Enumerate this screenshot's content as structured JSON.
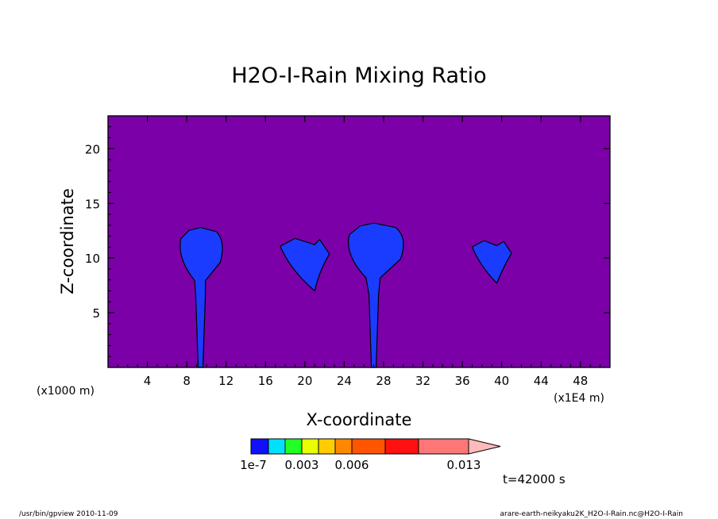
{
  "chart_data": {
    "type": "heatmap",
    "title": "H2O-I-Rain Mixing Ratio",
    "xlabel": "X-coordinate",
    "ylabel": "Z-coordinate",
    "x_unit_left": "(x1000 m)",
    "x_unit_right": "(x1E4 m)",
    "xlim": [
      0,
      51
    ],
    "ylim": [
      0,
      23
    ],
    "x_ticks": [
      4,
      8,
      12,
      16,
      20,
      24,
      28,
      32,
      36,
      40,
      44,
      48
    ],
    "y_ticks": [
      5,
      10,
      15,
      20
    ],
    "background_color": "#7b00a8",
    "features": [
      {
        "x": [
          7.0,
          9.4,
          12.0
        ],
        "z": [
          0,
          12.8
        ]
      },
      {
        "x": [
          17.5,
          21.0,
          22.5
        ],
        "z": [
          7.0,
          11.8
        ]
      },
      {
        "x": [
          24.0,
          27.0,
          30.5
        ],
        "z": [
          0,
          13.2
        ]
      },
      {
        "x": [
          37.0,
          39.5,
          41.0
        ],
        "z": [
          7.7,
          11.6
        ]
      }
    ],
    "colorbar": {
      "colors": [
        "#1010ff",
        "#00e0ff",
        "#22ff22",
        "#e8ff00",
        "#ffcc00",
        "#ff8800",
        "#ff5500",
        "#ff1111",
        "#ff7777",
        "#ffbbbb"
      ],
      "tick_labels": [
        "1e-7",
        "0.003",
        "0.006",
        "0.013"
      ]
    },
    "time_label": "t=42000 s"
  },
  "footer": {
    "left": "/usr/bin/gpview  2010-11-09",
    "right": "arare-earth-neikyaku2K_H2O-I-Rain.nc@H2O-I-Rain"
  }
}
